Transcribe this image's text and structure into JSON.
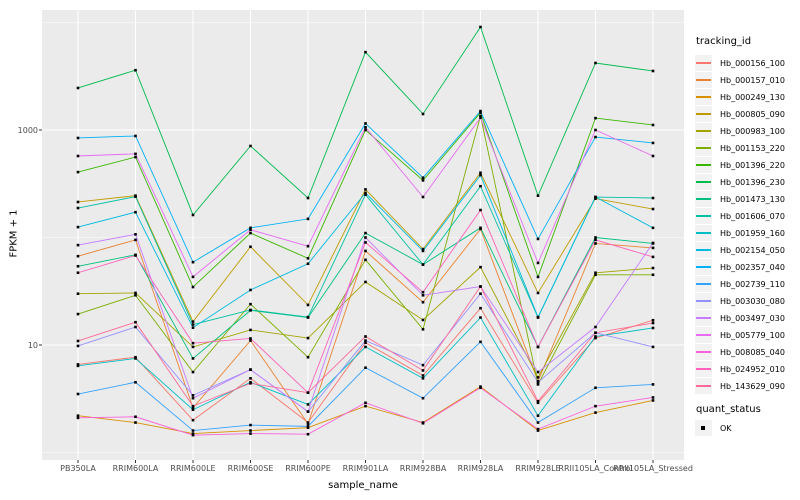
{
  "axes": {
    "y_label": "FPKM + 1",
    "x_label": "sample_name"
  },
  "legend": {
    "tracking_title": "tracking_id",
    "quant_title": "quant_status",
    "quant_ok_label": "OK"
  },
  "colors": {
    "panel_bg": "#EBEBEB",
    "grid": "#FFFFFF",
    "tick_mark": "#333333",
    "tick_text": "#4D4D4D",
    "point": "#000000",
    "legend_key_bg": "#F2F2F2"
  },
  "chart_data": {
    "type": "line",
    "title": "",
    "xlabel": "sample_name",
    "ylabel": "FPKM + 1",
    "y_scale": "log10",
    "y_tick_values": [
      1000,
      10
    ],
    "y_minor_gridlines": [
      1,
      100,
      10000
    ],
    "ylim": [
      1.3,
      13000
    ],
    "grid": true,
    "legend_position": "right",
    "categories": [
      "PB350LA",
      "RRIM600LA",
      "RRIM600LE",
      "RRIM600SE",
      "RRIM600PE",
      "RRIM901LA",
      "RRIM928BA",
      "RRIM928LA",
      "RRIM928LE",
      "RRII105LA_Control",
      "RRII105LA_Stressed"
    ],
    "series": [
      {
        "name": "Hb_000156_100",
        "color": "#F8766D",
        "values": [
          6.6,
          7.7,
          2.0,
          4.9,
          1.9,
          10.5,
          5.2,
          22,
          2.9,
          11.6,
          17
        ]
      },
      {
        "name": "Hb_000157_010",
        "color": "#EA8331",
        "values": [
          67,
          95,
          2.6,
          11,
          1.85,
          75,
          25,
          120,
          4.6,
          88,
          80
        ]
      },
      {
        "name": "Hb_000249_130",
        "color": "#D89000",
        "values": [
          2.2,
          1.9,
          1.5,
          1.6,
          1.7,
          2.7,
          1.9,
          4.1,
          1.6,
          2.35,
          3.05
        ]
      },
      {
        "name": "Hb_000805_090",
        "color": "#C09B00",
        "values": [
          214,
          245,
          16.5,
          82,
          23.6,
          280,
          78,
          400,
          30.5,
          230,
          184
        ]
      },
      {
        "name": "Hb_000983_100",
        "color": "#A3A500",
        "values": [
          30,
          30.5,
          9.6,
          13.8,
          11.6,
          38.6,
          17.1,
          53,
          5.0,
          47,
          52
        ]
      },
      {
        "name": "Hb_001153_220",
        "color": "#7CAE00",
        "values": [
          19.4,
          29,
          5.6,
          24,
          7.7,
          62,
          14,
          1350,
          4.3,
          45,
          45
        ]
      },
      {
        "name": "Hb_001396_220",
        "color": "#39B600",
        "values": [
          406,
          560,
          34.6,
          110,
          64,
          1000,
          340,
          1450,
          43,
          1290,
          1114
        ]
      },
      {
        "name": "Hb_001396_230",
        "color": "#00BB4E",
        "values": [
          2460,
          3600,
          162,
          710,
          233,
          5300,
          1410,
          9080,
          245,
          4200,
          3540
        ]
      },
      {
        "name": "Hb_001473_130",
        "color": "#00BF7D",
        "values": [
          54,
          69,
          7.5,
          21,
          18,
          110,
          56,
          123,
          9.6,
          100,
          88
        ]
      },
      {
        "name": "Hb_001606_070",
        "color": "#00C1A3",
        "values": [
          188,
          240,
          15.5,
          21.2,
          18.2,
          250,
          56,
          300,
          18,
          238,
          233
        ]
      },
      {
        "name": "Hb_001959_160",
        "color": "#00BFC4",
        "values": [
          6.4,
          7.5,
          2.5,
          4.5,
          2.8,
          9.6,
          4.9,
          18,
          2.2,
          12,
          14.4
        ]
      },
      {
        "name": "Hb_002154_050",
        "color": "#00BAE0",
        "values": [
          125,
          172,
          14.5,
          32.5,
          57,
          260,
          75,
          380,
          18.2,
          238,
          123
        ]
      },
      {
        "name": "Hb_002357_040",
        "color": "#00B0F6",
        "values": [
          843,
          880,
          59,
          123,
          149,
          1150,
          360,
          1500,
          97,
          860,
          758
        ]
      },
      {
        "name": "Hb_002739_110",
        "color": "#35A2FF",
        "values": [
          3.5,
          4.5,
          1.6,
          1.8,
          1.75,
          6.15,
          3.2,
          10.7,
          1.9,
          4.0,
          4.3
        ]
      },
      {
        "name": "Hb_003030_080",
        "color": "#9590FF",
        "values": [
          9.8,
          14.7,
          3.4,
          5.9,
          2.4,
          11,
          6.5,
          30,
          4.5,
          13,
          9.6
        ]
      },
      {
        "name": "Hb_003497_030",
        "color": "#C77CFF",
        "values": [
          85,
          107,
          3.2,
          5.9,
          2.4,
          100,
          29,
          35,
          5.6,
          14.7,
          89
        ]
      },
      {
        "name": "Hb_005779_100",
        "color": "#E76BF3",
        "values": [
          573,
          600,
          43,
          118,
          83,
          1060,
          238,
          1300,
          58,
          1000,
          573
        ]
      },
      {
        "name": "Hb_008085_040",
        "color": "#FA62DB",
        "values": [
          2.1,
          2.15,
          1.45,
          1.5,
          1.48,
          2.9,
          1.87,
          4.0,
          1.65,
          2.7,
          3.25
        ]
      },
      {
        "name": "Hb_024952_010",
        "color": "#FF62BC",
        "values": [
          47,
          68,
          10.4,
          11.5,
          3.6,
          90,
          31,
          180,
          9.6,
          95,
          66
        ]
      },
      {
        "name": "Hb_143629_090",
        "color": "#FF6A98",
        "values": [
          10.9,
          16.3,
          2.7,
          4.4,
          3.6,
          12,
          5.8,
          35,
          3.0,
          13,
          16
        ]
      }
    ],
    "point_legend": {
      "title": "quant_status",
      "entries": [
        "OK"
      ]
    }
  }
}
